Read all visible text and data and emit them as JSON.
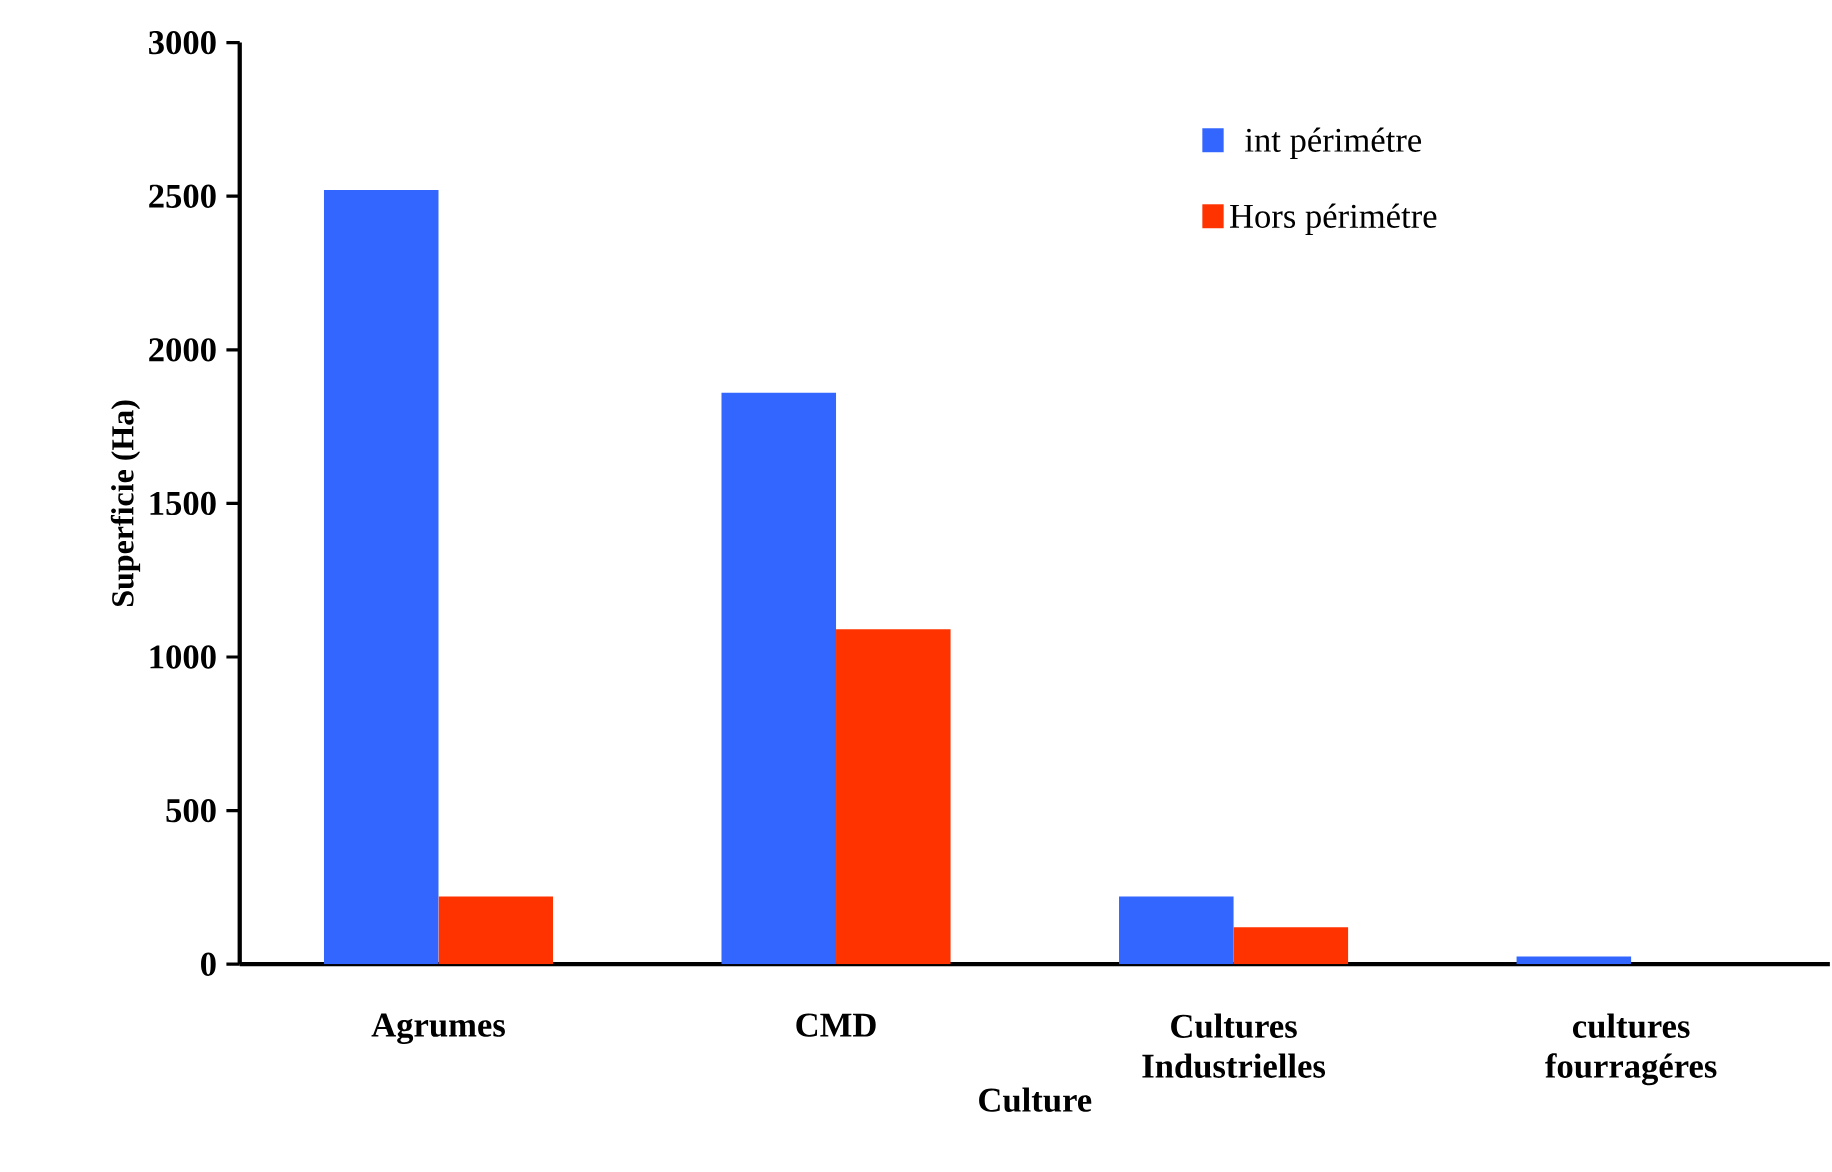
{
  "chart_data": {
    "type": "bar",
    "xlabel": "Culture",
    "ylabel": "Superficie (Ha)",
    "categories": [
      "Agrumes",
      "CMD",
      "Cultures Industrielles",
      "cultures fourragéres"
    ],
    "series": [
      {
        "name": "int périmétre",
        "color": "#3366ff",
        "values": [
          2520,
          1860,
          220,
          25
        ]
      },
      {
        "name": "Hors périmétre",
        "color": "#ff3300",
        "values": [
          220,
          1090,
          120,
          0
        ]
      }
    ],
    "ylim": [
      0,
      3000
    ],
    "yticks": [
      0,
      500,
      1000,
      1500,
      2000,
      2500,
      3000
    ],
    "grid": false,
    "legend": "top right"
  }
}
